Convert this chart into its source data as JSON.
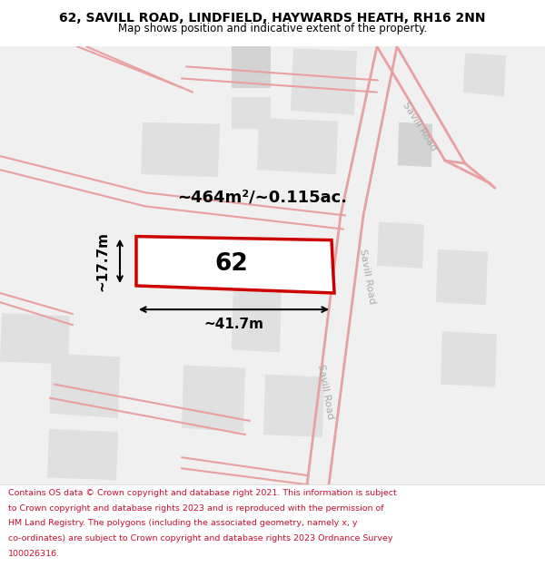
{
  "title": "62, SAVILL ROAD, LINDFIELD, HAYWARDS HEATH, RH16 2NN",
  "subtitle": "Map shows position and indicative extent of the property.",
  "footer_lines": [
    "Contains OS data © Crown copyright and database right 2021. This information is subject",
    "to Crown copyright and database rights 2023 and is reproduced with the permission of",
    "HM Land Registry. The polygons (including the associated geometry, namely x, y",
    "co-ordinates) are subject to Crown copyright and database rights 2023 Ordnance Survey",
    "100026316."
  ],
  "map_bg": "#f0f0f0",
  "title_color": "#000000",
  "footer_color": "#c8102e",
  "red_plot": "#cc0000",
  "road_color": "#e8a0a0",
  "grey": "#d3d3d3",
  "lgrey": "#e0e0e0",
  "area_label": "~464m²/~0.115ac.",
  "width_label": "~41.7m",
  "height_label": "~17.7m",
  "plot_number": "62",
  "road_label_upper": "Savill Road",
  "road_label_mid": "Savill Road",
  "road_label_lower": "Savill Road"
}
